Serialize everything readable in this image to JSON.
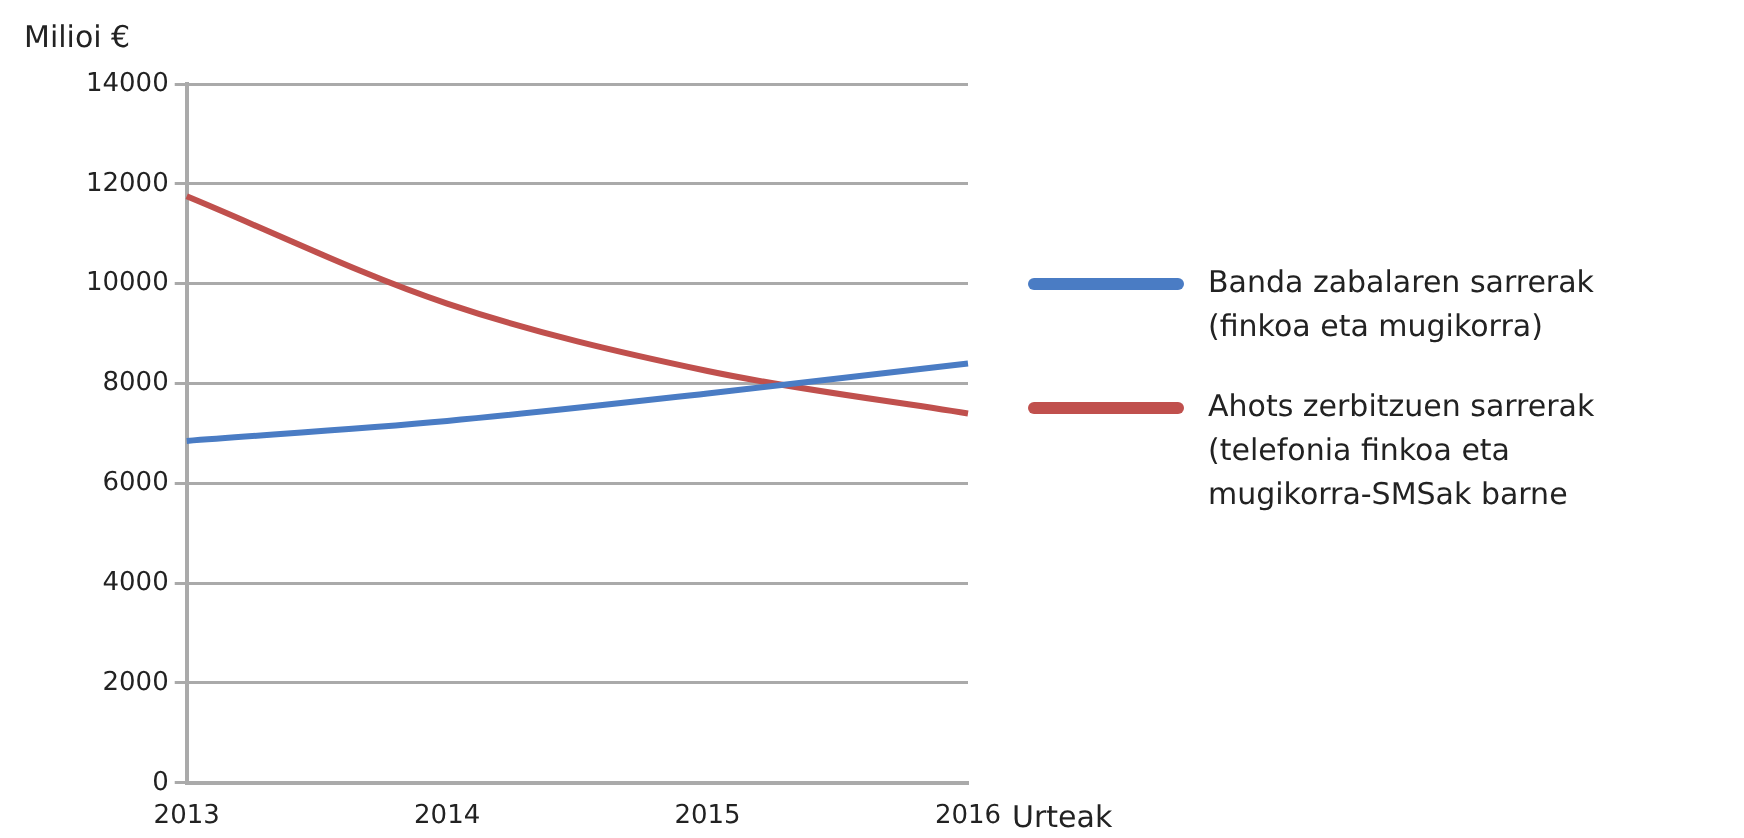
{
  "chart_data": {
    "type": "line",
    "xlabel": "Urteak",
    "ylabel": "Milioi €",
    "categories": [
      "2013",
      "2014",
      "2015",
      "2016"
    ],
    "series": [
      {
        "name": "Banda zabalaren sarrerak (finkoa eta mugikorra)",
        "color": "#4a7cc4",
        "values": [
          6850,
          7250,
          7800,
          8400
        ]
      },
      {
        "name": "Ahots zerbitzuen sarrerak (telefonia finkoa eta mugikorra-SMSak barne",
        "color": "#c0504d",
        "values": [
          11750,
          9600,
          8250,
          7400
        ]
      }
    ],
    "ylim": [
      0,
      14000
    ],
    "yticks": [
      0,
      2000,
      4000,
      6000,
      8000,
      10000,
      12000,
      14000
    ],
    "grid": "y",
    "legend": "right",
    "marker": "none",
    "line_style": "solid"
  }
}
